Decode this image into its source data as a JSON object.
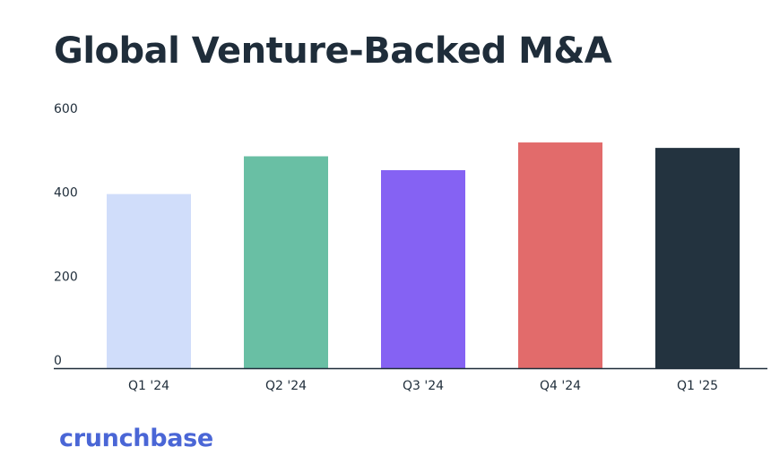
{
  "chart_data": {
    "type": "bar",
    "title": "Global Venture-Backed M&A",
    "categories": [
      "Q1 '24",
      "Q2 '24",
      "Q3 '24",
      "Q4 '24",
      "Q1 '25"
    ],
    "values": [
      415,
      505,
      472,
      538,
      525
    ],
    "colors": [
      "#d0ddfa",
      "#69bfa4",
      "#8562f3",
      "#e26b6b",
      "#23333f"
    ],
    "ylim": [
      0,
      600
    ],
    "yticks": [
      0,
      200,
      400,
      600
    ],
    "xlabel": "",
    "ylabel": "",
    "grid": false,
    "legend": "none"
  },
  "brand": {
    "logo_text": "crunchbase",
    "logo_color": "#4a66d6"
  },
  "colors": {
    "text": "#1f2d3a",
    "axis": "#1f2d3a",
    "background": "#ffffff"
  }
}
